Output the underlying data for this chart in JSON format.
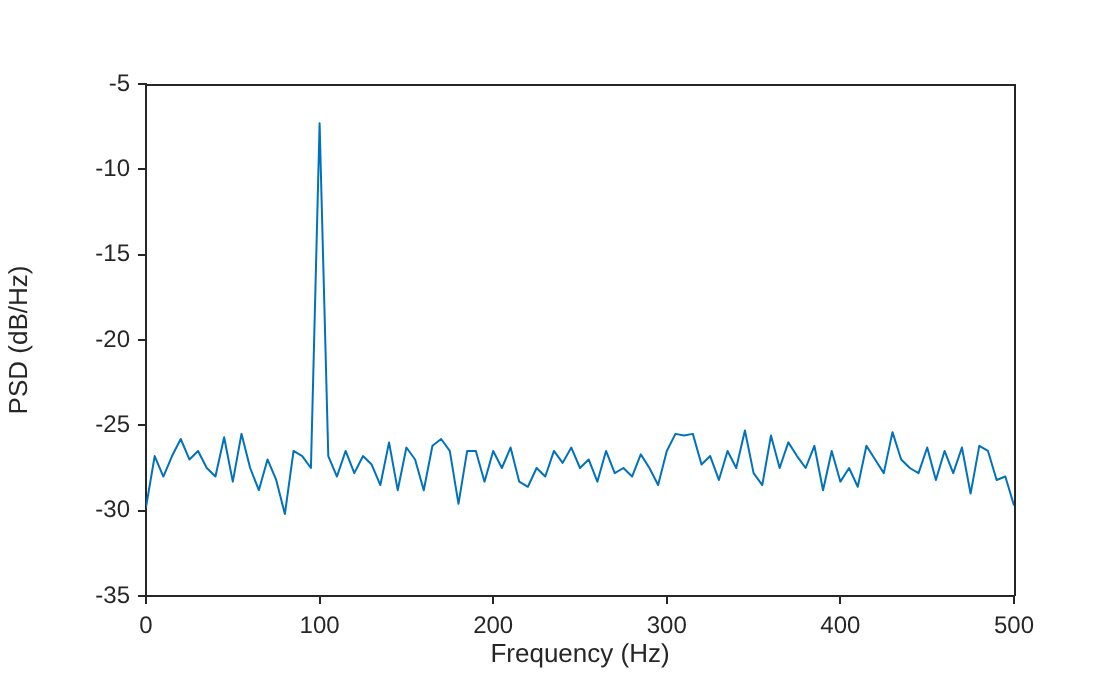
{
  "chart_data": {
    "type": "line",
    "xlabel": "Frequency (Hz)",
    "ylabel": "PSD (dB/Hz)",
    "x": [
      0,
      5,
      10,
      15,
      20,
      25,
      30,
      35,
      40,
      45,
      50,
      55,
      60,
      65,
      70,
      75,
      80,
      85,
      90,
      95,
      100,
      105,
      110,
      115,
      120,
      125,
      130,
      135,
      140,
      145,
      150,
      155,
      160,
      165,
      170,
      175,
      180,
      185,
      190,
      195,
      200,
      205,
      210,
      215,
      220,
      225,
      230,
      235,
      240,
      245,
      250,
      255,
      260,
      265,
      270,
      275,
      280,
      285,
      290,
      295,
      300,
      305,
      310,
      315,
      320,
      325,
      330,
      335,
      340,
      345,
      350,
      355,
      360,
      365,
      370,
      375,
      380,
      385,
      390,
      395,
      400,
      405,
      410,
      415,
      420,
      425,
      430,
      435,
      440,
      445,
      450,
      455,
      460,
      465,
      470,
      475,
      480,
      485,
      490,
      495,
      500
    ],
    "series": [
      {
        "color": "#0072bd",
        "values": [
          -29.8,
          -26.8,
          -28,
          -26.8,
          -25.8,
          -27,
          -26.5,
          -27.5,
          -28,
          -25.7,
          -28.3,
          -25.5,
          -27.5,
          -28.8,
          -27,
          -28.2,
          -30.2,
          -26.5,
          -26.8,
          -27.5,
          -7.3,
          -26.8,
          -28,
          -26.5,
          -27.8,
          -26.8,
          -27.3,
          -28.5,
          -26,
          -28.8,
          -26.3,
          -27,
          -28.8,
          -26.2,
          -25.8,
          -26.5,
          -29.6,
          -26.5,
          -26.5,
          -28.3,
          -26.5,
          -27.5,
          -26.3,
          -28.3,
          -28.6,
          -27.5,
          -28,
          -26.5,
          -27.2,
          -26.3,
          -27.5,
          -27,
          -28.3,
          -26.5,
          -27.8,
          -27.5,
          -28,
          -26.7,
          -27.5,
          -28.5,
          -26.5,
          -25.5,
          -25.6,
          -25.5,
          -27.3,
          -26.8,
          -28.2,
          -26.5,
          -27.5,
          -25.3,
          -27.8,
          -28.5,
          -25.6,
          -27.5,
          -26,
          -26.8,
          -27.5,
          -26.2,
          -28.8,
          -26.5,
          -28.3,
          -27.5,
          -28.6,
          -26.2,
          -27,
          -27.8,
          -25.4,
          -27,
          -27.5,
          -27.8,
          -26.3,
          -28.2,
          -26.5,
          -27.8,
          -26.3,
          -29,
          -26.2,
          -26.5,
          -28.2,
          -28,
          -29.7
        ]
      }
    ],
    "xlim": [
      0,
      500
    ],
    "xticks": [
      0,
      100,
      200,
      300,
      400,
      500
    ],
    "ylim": [
      -35,
      -5
    ],
    "yticks": [
      -35,
      -30,
      -25,
      -20,
      -15,
      -10,
      -5
    ],
    "grid": false,
    "legend": false,
    "marker": "none",
    "line_style": "solid"
  }
}
